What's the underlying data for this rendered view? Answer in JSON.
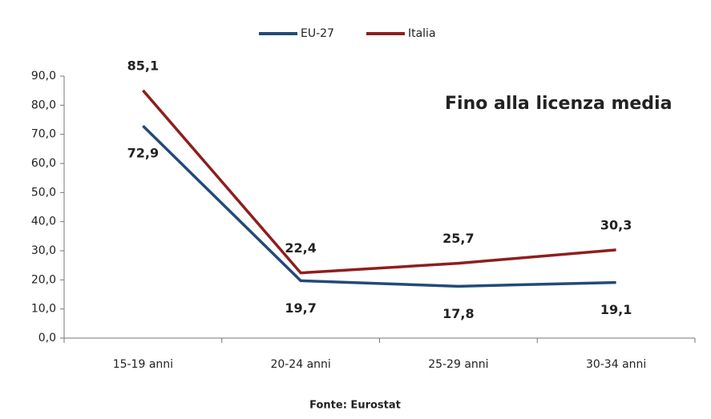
{
  "chart_data": {
    "type": "line",
    "annotation": "Fino alla licenza media",
    "source": "Fonte: Eurostat",
    "categories": [
      "15-19 anni",
      "20-24 anni",
      "25-29 anni",
      "30-34 anni"
    ],
    "series": [
      {
        "name": "EU-27",
        "color": "#234a78",
        "values": [
          72.9,
          19.7,
          17.8,
          19.1
        ],
        "value_labels": [
          "72,9",
          "19,7",
          "17,8",
          "19,1"
        ]
      },
      {
        "name": "Italia",
        "color": "#8e1e1e",
        "values": [
          85.1,
          22.4,
          25.7,
          30.3
        ],
        "value_labels": [
          "85,1",
          "22,4",
          "25,7",
          "30,3"
        ]
      }
    ],
    "ylim": [
      0,
      90
    ],
    "yticks": [
      {
        "value": 0,
        "label": "0,0"
      },
      {
        "value": 10,
        "label": "10,0"
      },
      {
        "value": 20,
        "label": "20,0"
      },
      {
        "value": 30,
        "label": "30,0"
      },
      {
        "value": 40,
        "label": "40,0"
      },
      {
        "value": 50,
        "label": "50,0"
      },
      {
        "value": 60,
        "label": "60,0"
      },
      {
        "value": 70,
        "label": "70,0"
      },
      {
        "value": 80,
        "label": "80,0"
      },
      {
        "value": 90,
        "label": "90,0"
      }
    ],
    "grid": false,
    "legend": "top"
  }
}
